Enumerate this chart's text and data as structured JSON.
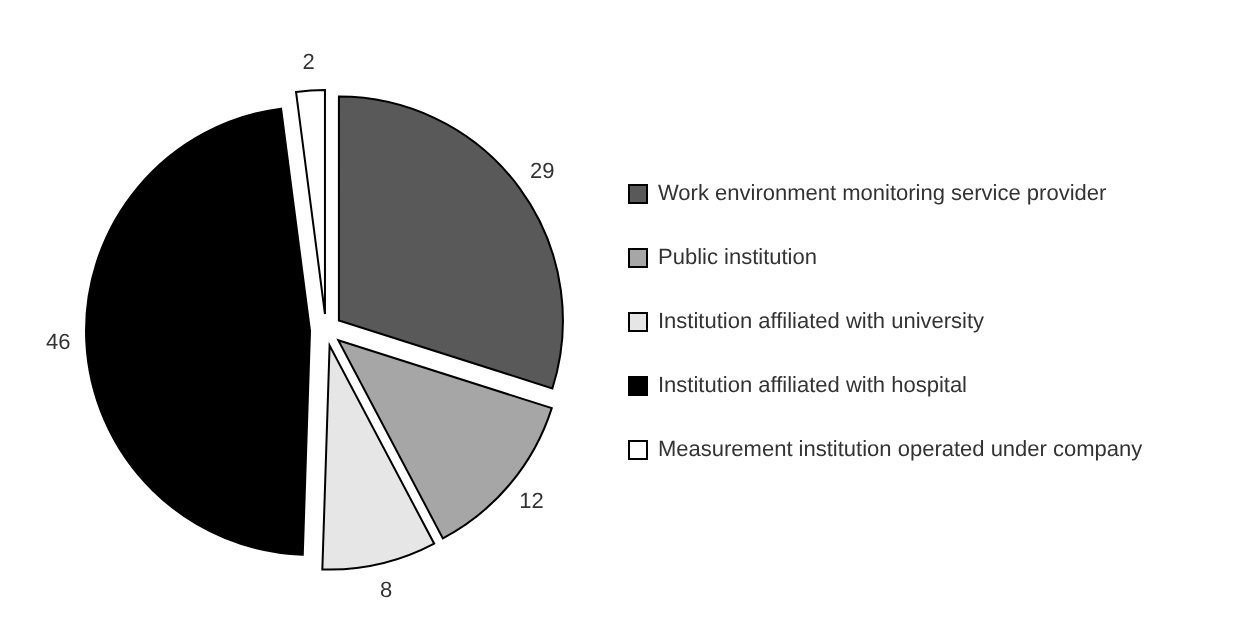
{
  "chart_data": {
    "type": "pie",
    "categories": [
      "Work environment monitoring service provider",
      "Public institution",
      "Institution affiliated with university",
      "Institution affiliated with hospital",
      "Measurement institution operated under company"
    ],
    "values": [
      29,
      12,
      8,
      46,
      2
    ],
    "colors": [
      "#595959",
      "#a6a6a6",
      "#e6e6e6",
      "#000000",
      "#ffffff"
    ],
    "data_labels": true,
    "legend": "right"
  }
}
